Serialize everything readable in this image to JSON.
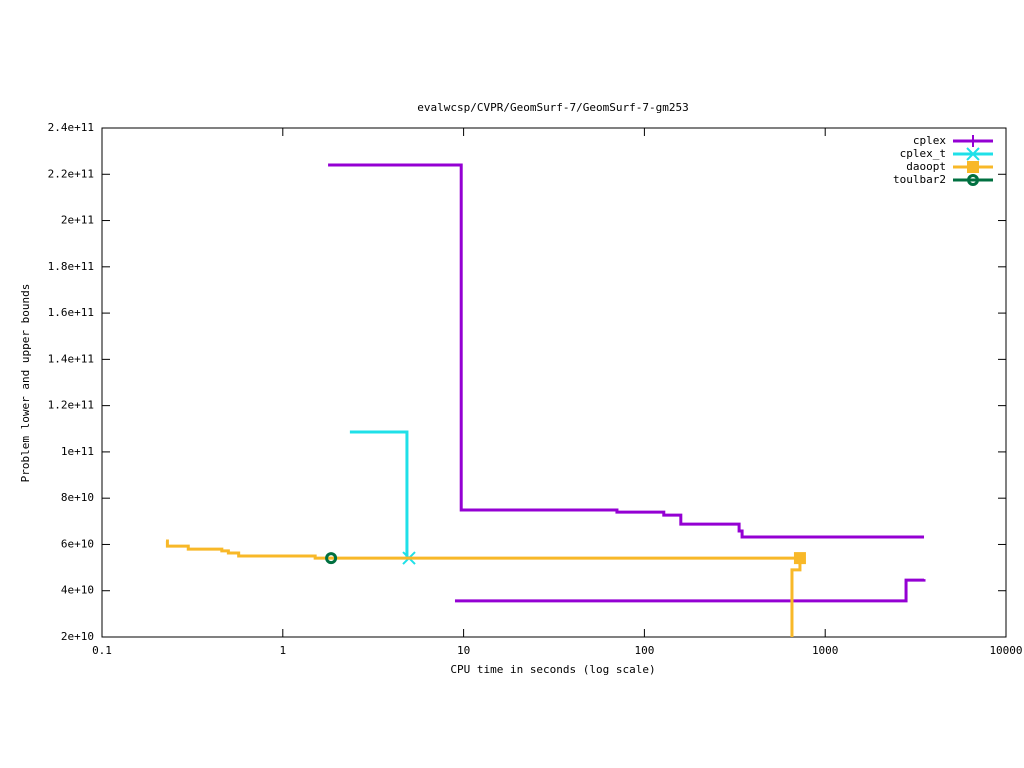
{
  "chart_data": {
    "type": "step",
    "title": "evalwcsp/CVPR/GeomSurf-7/GeomSurf-7-gm253",
    "x_label": "CPU time in seconds (log scale)",
    "y_label": "Problem lower and upper bounds",
    "x_scale": "log",
    "xlim": [
      0.1,
      10000
    ],
    "xticks": [
      0.1,
      1,
      10,
      100,
      1000,
      10000
    ],
    "ylim": [
      20000000000,
      240000000000
    ],
    "yticks": [
      {
        "value": 20000000000,
        "label": "2e+10"
      },
      {
        "value": 40000000000,
        "label": "4e+10"
      },
      {
        "value": 60000000000,
        "label": "6e+10"
      },
      {
        "value": 80000000000,
        "label": "8e+10"
      },
      {
        "value": 100000000000,
        "label": "1e+11"
      },
      {
        "value": 120000000000,
        "label": "1.2e+11"
      },
      {
        "value": 140000000000,
        "label": "1.4e+11"
      },
      {
        "value": 160000000000,
        "label": "1.6e+11"
      },
      {
        "value": 180000000000,
        "label": "1.8e+11"
      },
      {
        "value": 200000000000,
        "label": "2e+11"
      },
      {
        "value": 220000000000,
        "label": "2.2e+11"
      },
      {
        "value": 240000000000,
        "label": "2.4e+11"
      }
    ],
    "grid": false,
    "legend_position": "top-right",
    "series": [
      {
        "name": "cplex",
        "color": "#9400d3",
        "point": "plus",
        "points": "none",
        "x": [
          1.78,
          9.7,
          70.5,
          128,
          159,
          334,
          347,
          3520,
          null,
          8.96,
          2800,
          3520
        ],
        "values": [
          224000000000,
          74900000000,
          74000000000,
          72700000000,
          68800000000,
          65800000000,
          63200000000,
          63200000000,
          null,
          35600000000,
          44600000000,
          45000000000
        ]
      },
      {
        "name": "cplex_t",
        "color": "#1fe0e8",
        "point": "cross",
        "points": "last",
        "x": [
          2.35,
          4.86,
          4.99
        ],
        "values": [
          108600000000,
          54100000000,
          54100000000
        ]
      },
      {
        "name": "daoopt",
        "color": "#f8b828",
        "point": "square",
        "points": "last",
        "x": [
          0.226,
          0.23,
          0.3,
          0.46,
          0.5,
          0.57,
          1.51,
          725,
          null,
          655,
          655,
          725
        ],
        "values": [
          61500000000,
          59300000000,
          58000000000,
          57200000000,
          56300000000,
          55000000000,
          54100000000,
          54100000000,
          null,
          20000000000,
          49000000000,
          54100000000
        ]
      },
      {
        "name": "toulbar2",
        "color": "#007040",
        "point": "circle",
        "points": "last",
        "x": [
          1.85
        ],
        "values": [
          54100000000
        ]
      }
    ]
  }
}
